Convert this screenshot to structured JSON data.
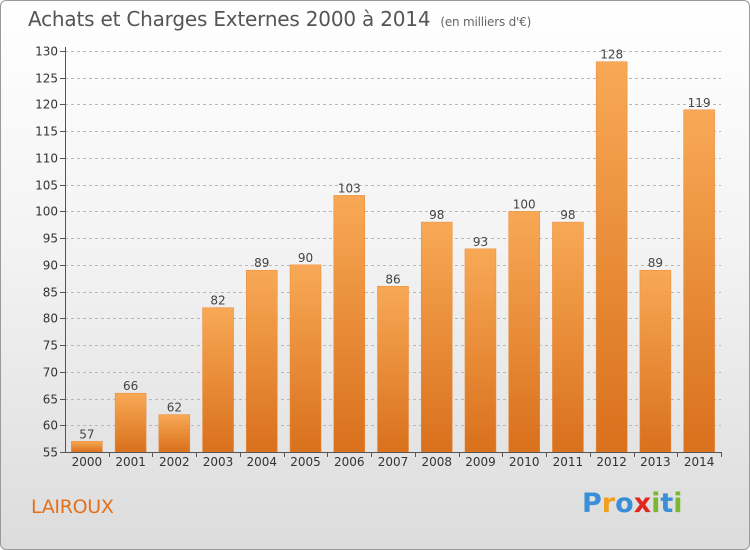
{
  "title": "Achats et Charges Externes 2000 à 2014",
  "subtitle": "(en milliers d'€)",
  "place": "LAIROUX",
  "logo": {
    "text": "Proxiti",
    "letters": [
      {
        "ch": "P",
        "color": "#3a8fd8"
      },
      {
        "ch": "r",
        "color": "#f0a01e"
      },
      {
        "ch": "o",
        "color": "#3a8fd8"
      },
      {
        "ch": "x",
        "color": "#e0261d"
      },
      {
        "ch": "i",
        "color": "#7cb82f"
      },
      {
        "ch": "t",
        "color": "#3a8fd8"
      },
      {
        "ch": "i",
        "color": "#7cb82f"
      }
    ]
  },
  "colors": {
    "bar_light": "#f8a955",
    "bar_dark": "#d9701c",
    "axis": "#555555",
    "grid": "#b8b8b8"
  },
  "chart_data": {
    "type": "bar",
    "title": "Achats et Charges Externes 2000 à 2014",
    "subtitle": "(en milliers d'€)",
    "xlabel": "",
    "ylabel": "",
    "categories": [
      "2000",
      "2001",
      "2002",
      "2003",
      "2004",
      "2005",
      "2006",
      "2007",
      "2008",
      "2009",
      "2010",
      "2011",
      "2012",
      "2013",
      "2014"
    ],
    "values": [
      57,
      66,
      62,
      82,
      89,
      90,
      103,
      86,
      98,
      93,
      100,
      98,
      128,
      89,
      119
    ],
    "ylim": [
      55,
      130
    ],
    "yticks": [
      55,
      60,
      65,
      70,
      75,
      80,
      85,
      90,
      95,
      100,
      105,
      110,
      115,
      120,
      125,
      130
    ],
    "grid": true,
    "grid_style": "dashed horizontal",
    "data_labels": true,
    "legend": "none"
  }
}
